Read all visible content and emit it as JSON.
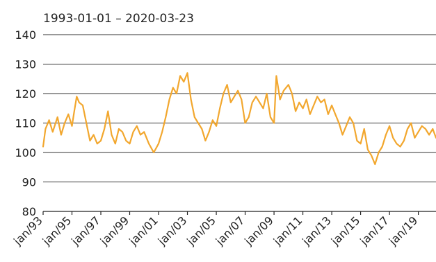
{
  "chart_data": {
    "type": "line",
    "subtitle": "1993-01-01 – 2020-03-23",
    "title": "",
    "xlabel": "",
    "ylabel": "",
    "ylim": [
      80,
      140
    ],
    "yticks": [
      80,
      90,
      100,
      110,
      120,
      130,
      140
    ],
    "xlim": [
      "1993-01-01",
      "2020-03-23"
    ],
    "xticks": [
      {
        "date": "1993-01-01",
        "label": "jan/93"
      },
      {
        "date": "1995-01-01",
        "label": "jan/95"
      },
      {
        "date": "1997-01-01",
        "label": "jan/97"
      },
      {
        "date": "1999-01-01",
        "label": "jan/99"
      },
      {
        "date": "2001-01-01",
        "label": "jan/01"
      },
      {
        "date": "2003-01-01",
        "label": "jan/03"
      },
      {
        "date": "2005-01-01",
        "label": "jan/05"
      },
      {
        "date": "2007-01-01",
        "label": "jan/07"
      },
      {
        "date": "2009-01-01",
        "label": "jan/09"
      },
      {
        "date": "2011-01-01",
        "label": "jan/11"
      },
      {
        "date": "2013-01-01",
        "label": "jan/13"
      },
      {
        "date": "2015-01-01",
        "label": "jan/15"
      },
      {
        "date": "2017-01-01",
        "label": "jan/17"
      },
      {
        "date": "2019-01-01",
        "label": "jan/19"
      }
    ],
    "grid": "horizontal",
    "series_color": "#f2a72e",
    "series": [
      {
        "x": [
          "1993-01-01",
          "1993-03-01",
          "1993-06-01",
          "1993-09-01",
          "1994-01-01",
          "1994-04-01",
          "1994-07-01",
          "1994-10-01",
          "1995-01-01",
          "1995-03-01",
          "1995-05-01",
          "1995-07-01",
          "1995-10-01",
          "1996-01-01",
          "1996-04-01",
          "1996-07-01",
          "1996-10-01",
          "1997-01-01",
          "1997-04-01",
          "1997-07-01",
          "1997-10-01",
          "1998-01-01",
          "1998-04-01",
          "1998-07-01",
          "1998-10-01",
          "1999-01-01",
          "1999-04-01",
          "1999-07-01",
          "1999-10-01",
          "2000-01-01",
          "2000-05-01",
          "2000-09-01",
          "2001-01-01",
          "2001-04-01",
          "2001-07-01",
          "2001-10-01",
          "2002-01-01",
          "2002-04-01",
          "2002-07-01",
          "2002-10-01",
          "2003-01-01",
          "2003-04-01",
          "2003-07-01",
          "2003-10-01",
          "2004-01-01",
          "2004-04-01",
          "2004-07-01",
          "2004-10-01",
          "2005-01-01",
          "2005-04-01",
          "2005-07-01",
          "2005-10-01",
          "2006-01-01",
          "2006-04-01",
          "2006-07-01",
          "2006-10-01",
          "2007-01-01",
          "2007-04-01",
          "2007-07-01",
          "2007-10-01",
          "2008-01-01",
          "2008-04-01",
          "2008-07-01",
          "2008-10-01",
          "2009-01-01",
          "2009-03-01",
          "2009-06-01",
          "2009-09-01",
          "2010-01-01",
          "2010-04-01",
          "2010-07-01",
          "2010-10-01",
          "2011-01-01",
          "2011-04-01",
          "2011-07-01",
          "2011-10-01",
          "2012-01-01",
          "2012-04-01",
          "2012-07-01",
          "2012-10-01",
          "2013-01-01",
          "2013-04-01",
          "2013-07-01",
          "2013-10-01",
          "2014-01-01",
          "2014-04-01",
          "2014-07-01",
          "2014-10-01",
          "2015-01-01",
          "2015-04-01",
          "2015-07-01",
          "2015-10-01",
          "2016-01-01",
          "2016-04-01",
          "2016-07-01",
          "2016-10-01",
          "2017-01-01",
          "2017-04-01",
          "2017-07-01",
          "2017-10-01",
          "2018-01-01",
          "2018-04-01",
          "2018-07-01",
          "2018-10-01",
          "2019-01-01",
          "2019-04-01",
          "2019-07-01",
          "2019-10-01",
          "2020-01-01",
          "2020-03-23"
        ],
        "values": [
          102,
          108,
          111,
          107,
          112,
          106,
          110,
          113,
          109,
          114,
          119,
          117,
          116,
          110,
          104,
          106,
          103,
          104,
          108,
          114,
          106,
          103,
          108,
          107,
          104,
          103,
          107,
          109,
          106,
          107,
          103,
          100,
          103,
          107,
          112,
          118,
          122,
          120,
          126,
          124,
          127,
          118,
          112,
          110,
          108,
          104,
          107,
          111,
          109,
          115,
          120,
          123,
          117,
          119,
          121,
          118,
          110,
          112,
          117,
          119,
          117,
          115,
          120,
          112,
          110,
          126,
          118,
          121,
          123,
          120,
          114,
          117,
          115,
          118,
          113,
          116,
          119,
          117,
          118,
          113,
          116,
          113,
          110,
          106,
          109,
          112,
          110,
          104,
          103,
          108,
          101,
          99,
          96,
          100,
          102,
          106,
          109,
          105,
          103,
          102,
          104,
          108,
          110,
          105,
          107,
          109,
          108,
          106,
          108,
          105
        ]
      }
    ]
  }
}
